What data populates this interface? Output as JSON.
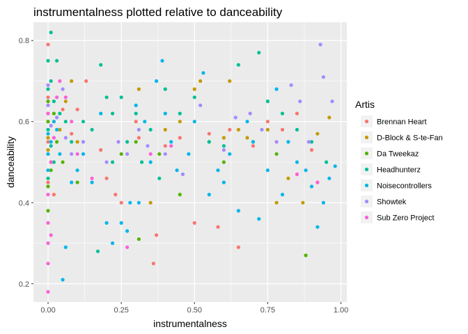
{
  "chart_data": {
    "type": "scatter",
    "title": "instrumentalness plotted relative to danceability",
    "xlabel": "instrumentalness",
    "ylabel": "danceability",
    "xlim": [
      -0.05,
      1.02
    ],
    "ylim": [
      0.155,
      0.845
    ],
    "x_ticks": [
      0,
      0.25,
      0.5,
      0.75,
      1.0
    ],
    "x_tick_labels": [
      "0.00",
      "0.25",
      "0.50",
      "0.75",
      "1.00"
    ],
    "y_ticks": [
      0.2,
      0.4,
      0.6,
      0.8
    ],
    "y_tick_labels": [
      "0.2",
      "0.4",
      "0.6",
      "0.8"
    ],
    "grid": true,
    "legend": {
      "title": "Artis",
      "position": "right"
    },
    "series": [
      {
        "name": "Brennan Heart",
        "color": "#F8766D",
        "points": [
          [
            0,
            0.79
          ],
          [
            0,
            0.66
          ],
          [
            0,
            0.6
          ],
          [
            0,
            0.55
          ],
          [
            0.01,
            0.5
          ],
          [
            0,
            0.45
          ],
          [
            0.02,
            0.42
          ],
          [
            0.05,
            0.63
          ],
          [
            0.08,
            0.57
          ],
          [
            0.1,
            0.63
          ],
          [
            0.13,
            0.7
          ],
          [
            0.18,
            0.53
          ],
          [
            0.2,
            0.46
          ],
          [
            0.23,
            0.42
          ],
          [
            0.25,
            0.4
          ],
          [
            0.3,
            0.6
          ],
          [
            0.31,
            0.56
          ],
          [
            0.36,
            0.25
          ],
          [
            0.37,
            0.32
          ],
          [
            0.4,
            0.54
          ],
          [
            0.45,
            0.56
          ],
          [
            0.5,
            0.35
          ],
          [
            0.55,
            0.57
          ],
          [
            0.58,
            0.34
          ],
          [
            0.62,
            0.58
          ],
          [
            0.65,
            0.29
          ],
          [
            0.7,
            0.54
          ],
          [
            0.75,
            0.6
          ],
          [
            0.8,
            0.58
          ],
          [
            0.85,
            0.62
          ],
          [
            0.9,
            0.53
          ],
          [
            0.92,
            0.45
          ]
        ]
      },
      {
        "name": "D-Block & S-te-Fan",
        "color": "#C49A00",
        "points": [
          [
            0,
            0.62
          ],
          [
            0,
            0.56
          ],
          [
            0,
            0.53
          ],
          [
            0.01,
            0.5
          ],
          [
            0,
            0.44
          ],
          [
            0.02,
            0.6
          ],
          [
            0.04,
            0.58
          ],
          [
            0.06,
            0.65
          ],
          [
            0.08,
            0.7
          ],
          [
            0.1,
            0.55
          ],
          [
            0.31,
            0.68
          ],
          [
            0.35,
            0.4
          ],
          [
            0.4,
            0.58
          ],
          [
            0.45,
            0.6
          ],
          [
            0.5,
            0.68
          ],
          [
            0.52,
            0.7
          ],
          [
            0.6,
            0.56
          ],
          [
            0.62,
            0.7
          ],
          [
            0.65,
            0.58
          ],
          [
            0.68,
            0.56
          ],
          [
            0.75,
            0.58
          ],
          [
            0.78,
            0.4
          ],
          [
            0.82,
            0.46
          ],
          [
            0.87,
            0.4
          ],
          [
            0.92,
            0.57
          ],
          [
            0.96,
            0.61
          ]
        ]
      },
      {
        "name": "Da Tweekaz",
        "color": "#53B400",
        "points": [
          [
            0,
            0.65
          ],
          [
            0,
            0.6
          ],
          [
            0,
            0.52
          ],
          [
            0.01,
            0.48
          ],
          [
            0,
            0.44
          ],
          [
            0,
            0.38
          ],
          [
            0.02,
            0.62
          ],
          [
            0.03,
            0.55
          ],
          [
            0.05,
            0.5
          ],
          [
            0.1,
            0.45
          ],
          [
            0.25,
            0.52
          ],
          [
            0.3,
            0.55
          ],
          [
            0.31,
            0.31
          ],
          [
            0.38,
            0.52
          ],
          [
            0.45,
            0.42
          ],
          [
            0.55,
            0.55
          ],
          [
            0.6,
            0.5
          ],
          [
            0.7,
            0.55
          ],
          [
            0.78,
            0.52
          ],
          [
            0.88,
            0.27
          ]
        ]
      },
      {
        "name": "Headhunterz",
        "color": "#00C094",
        "points": [
          [
            0.01,
            0.82
          ],
          [
            0,
            0.75
          ],
          [
            0.03,
            0.75
          ],
          [
            0.01,
            0.7
          ],
          [
            0,
            0.68
          ],
          [
            0.02,
            0.65
          ],
          [
            0,
            0.58
          ],
          [
            0.01,
            0.54
          ],
          [
            0.02,
            0.5
          ],
          [
            0,
            0.46
          ],
          [
            0.04,
            0.62
          ],
          [
            0.06,
            0.6
          ],
          [
            0.08,
            0.55
          ],
          [
            0.12,
            0.6
          ],
          [
            0.15,
            0.58
          ],
          [
            0.18,
            0.74
          ],
          [
            0.2,
            0.66
          ],
          [
            0.22,
            0.62
          ],
          [
            0.25,
            0.66
          ],
          [
            0.27,
            0.55
          ],
          [
            0.3,
            0.62
          ],
          [
            0.32,
            0.5
          ],
          [
            0.35,
            0.58
          ],
          [
            0.38,
            0.46
          ],
          [
            0.4,
            0.68
          ],
          [
            0.45,
            0.62
          ],
          [
            0.5,
            0.66
          ],
          [
            0.55,
            0.55
          ],
          [
            0.6,
            0.54
          ],
          [
            0.65,
            0.74
          ],
          [
            0.72,
            0.77
          ],
          [
            0.75,
            0.65
          ],
          [
            0.8,
            0.62
          ],
          [
            0.85,
            0.58
          ],
          [
            0.9,
            0.55
          ],
          [
            0.95,
            0.5
          ],
          [
            0.22,
            0.5
          ],
          [
            0.17,
            0.28
          ]
        ]
      },
      {
        "name": "Noisecontrollers",
        "color": "#00B6EB",
        "points": [
          [
            0,
            0.57
          ],
          [
            0,
            0.52
          ],
          [
            0,
            0.48
          ],
          [
            0.01,
            0.55
          ],
          [
            0.02,
            0.6
          ],
          [
            0.03,
            0.58
          ],
          [
            0.04,
            0.52
          ],
          [
            0.05,
            0.21
          ],
          [
            0.06,
            0.29
          ],
          [
            0.08,
            0.45
          ],
          [
            0.1,
            0.48
          ],
          [
            0.12,
            0.52
          ],
          [
            0.15,
            0.45
          ],
          [
            0.18,
            0.62
          ],
          [
            0.2,
            0.35
          ],
          [
            0.22,
            0.3
          ],
          [
            0.25,
            0.35
          ],
          [
            0.27,
            0.33
          ],
          [
            0.28,
            0.4
          ],
          [
            0.3,
            0.64
          ],
          [
            0.31,
            0.4
          ],
          [
            0.33,
            0.6
          ],
          [
            0.35,
            0.5
          ],
          [
            0.37,
            0.7
          ],
          [
            0.39,
            0.75
          ],
          [
            0.4,
            0.62
          ],
          [
            0.42,
            0.55
          ],
          [
            0.44,
            0.48
          ],
          [
            0.48,
            0.52
          ],
          [
            0.5,
            0.6
          ],
          [
            0.53,
            0.72
          ],
          [
            0.55,
            0.42
          ],
          [
            0.58,
            0.48
          ],
          [
            0.6,
            0.45
          ],
          [
            0.62,
            0.52
          ],
          [
            0.65,
            0.38
          ],
          [
            0.68,
            0.6
          ],
          [
            0.7,
            0.55
          ],
          [
            0.72,
            0.36
          ],
          [
            0.75,
            0.48
          ],
          [
            0.78,
            0.68
          ],
          [
            0.8,
            0.42
          ],
          [
            0.82,
            0.55
          ],
          [
            0.85,
            0.5
          ],
          [
            0.88,
            0.48
          ],
          [
            0.9,
            0.44
          ],
          [
            0.92,
            0.34
          ],
          [
            0.94,
            0.4
          ],
          [
            0.96,
            0.46
          ],
          [
            0.98,
            0.49
          ]
        ]
      },
      {
        "name": "Showtek",
        "color": "#A58AFF",
        "points": [
          [
            0,
            0.69
          ],
          [
            0,
            0.64
          ],
          [
            0.01,
            0.59
          ],
          [
            0.02,
            0.56
          ],
          [
            0.03,
            0.61
          ],
          [
            0.05,
            0.68
          ],
          [
            0.06,
            0.56
          ],
          [
            0.08,
            0.52
          ],
          [
            0.12,
            0.55
          ],
          [
            0.2,
            0.5
          ],
          [
            0.24,
            0.55
          ],
          [
            0.27,
            0.52
          ],
          [
            0.31,
            0.58
          ],
          [
            0.34,
            0.54
          ],
          [
            0.4,
            0.52
          ],
          [
            0.46,
            0.47
          ],
          [
            0.52,
            0.64
          ],
          [
            0.6,
            0.53
          ],
          [
            0.64,
            0.61
          ],
          [
            0.69,
            0.62
          ],
          [
            0.73,
            0.58
          ],
          [
            0.78,
            0.55
          ],
          [
            0.83,
            0.69
          ],
          [
            0.86,
            0.65
          ],
          [
            0.89,
            0.55
          ],
          [
            0.93,
            0.79
          ],
          [
            0.94,
            0.71
          ],
          [
            0.97,
            0.65
          ]
        ]
      },
      {
        "name": "Sub Zero Project",
        "color": "#FB61D7",
        "points": [
          [
            0,
            0.18
          ],
          [
            0,
            0.25
          ],
          [
            0,
            0.3
          ],
          [
            0.01,
            0.32
          ],
          [
            0,
            0.35
          ],
          [
            0,
            0.42
          ],
          [
            0.01,
            0.5
          ],
          [
            0.02,
            0.56
          ],
          [
            0,
            0.62
          ],
          [
            0.03,
            0.66
          ],
          [
            0.04,
            0.7
          ],
          [
            0.06,
            0.66
          ],
          [
            0.08,
            0.6
          ],
          [
            0.1,
            0.52
          ],
          [
            0.15,
            0.46
          ],
          [
            0.27,
            0.29
          ],
          [
            0.35,
            0.52
          ],
          [
            0.42,
            0.54
          ],
          [
            0.85,
            0.47
          ],
          [
            0.92,
            0.45
          ]
        ]
      }
    ]
  }
}
